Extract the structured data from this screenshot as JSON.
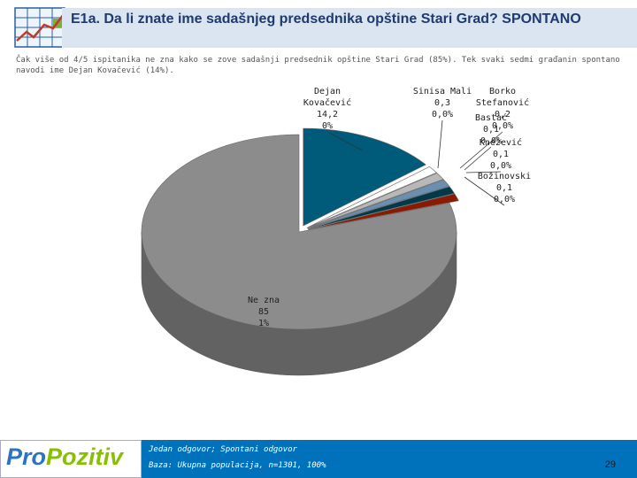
{
  "header": {
    "title": "E1a. Da li znate ime sadašnjeg predsednika opštine Stari Grad? SPONTANO",
    "subtitle": "Čak više od 4/5 ispitanika ne zna kako se zove sadašnji predsednik opštine Stari Grad (85%). Tek svaki sedmi građanin spontano navodi ime Dejan Kovačević (14%)."
  },
  "colors": {
    "header_band": "#dbe5f1",
    "footer": "#0072bc",
    "logo_blue": "#2a74c3",
    "logo_green": "#88c000"
  },
  "icons": {
    "header_logo": "chart-growth-icon"
  },
  "chart_data": {
    "type": "pie",
    "slices": [
      {
        "name": "Dejan Kovačević",
        "value": 14.2,
        "pct_label": "0%",
        "value_label": "14,2",
        "color": "#005a7a",
        "label_lines": [
          "Dejan",
          "Kovačević",
          "14,2",
          "0%"
        ]
      },
      {
        "name": "Sinisa Mali",
        "value": 0.3,
        "pct_label": "0,0%",
        "value_label": "0,3",
        "color": "#ffffff",
        "label_lines": [
          "Sinisa Mali",
          "0,3",
          "0,0%"
        ]
      },
      {
        "name": "Borko Stefanović",
        "value": 0.2,
        "pct_label": "0,0%",
        "value_label": "0,2",
        "color": "#b8b8b8",
        "label_lines": [
          "Borko",
          "Stefanović",
          "0,2",
          "0,0%"
        ]
      },
      {
        "name": "Bastać",
        "value": 0.1,
        "pct_label": "0,0%",
        "value_label": "0,1",
        "color": "#6a8fb0",
        "label_lines": [
          "Bastać",
          "0,1",
          "0,0%"
        ]
      },
      {
        "name": "Knežević",
        "value": 0.1,
        "pct_label": "0,0%",
        "value_label": "0,1",
        "color": "#003a4a",
        "label_lines": [
          "Knežević",
          "0,1",
          "0,0%"
        ]
      },
      {
        "name": "Božinovski",
        "value": 0.1,
        "pct_label": "0,0%",
        "value_label": "0,1",
        "color": "#8b1a00",
        "label_lines": [
          "Božinovski",
          "0,1",
          "0,0%"
        ]
      },
      {
        "name": "Ne zna",
        "value": 85,
        "pct_label": "1%",
        "value_label": "85",
        "color": "#8c8c8c",
        "label_lines": [
          "Ne zna",
          "85",
          "1%"
        ]
      }
    ]
  },
  "footer": {
    "logo_part1": "Pro",
    "logo_part2": "Pozitiv",
    "note_line1": "Jedan odgovor; Spontani odgovor",
    "note_line2": "Baza: Ukupna populacija, n=1301, 100%",
    "page_number": "29"
  }
}
